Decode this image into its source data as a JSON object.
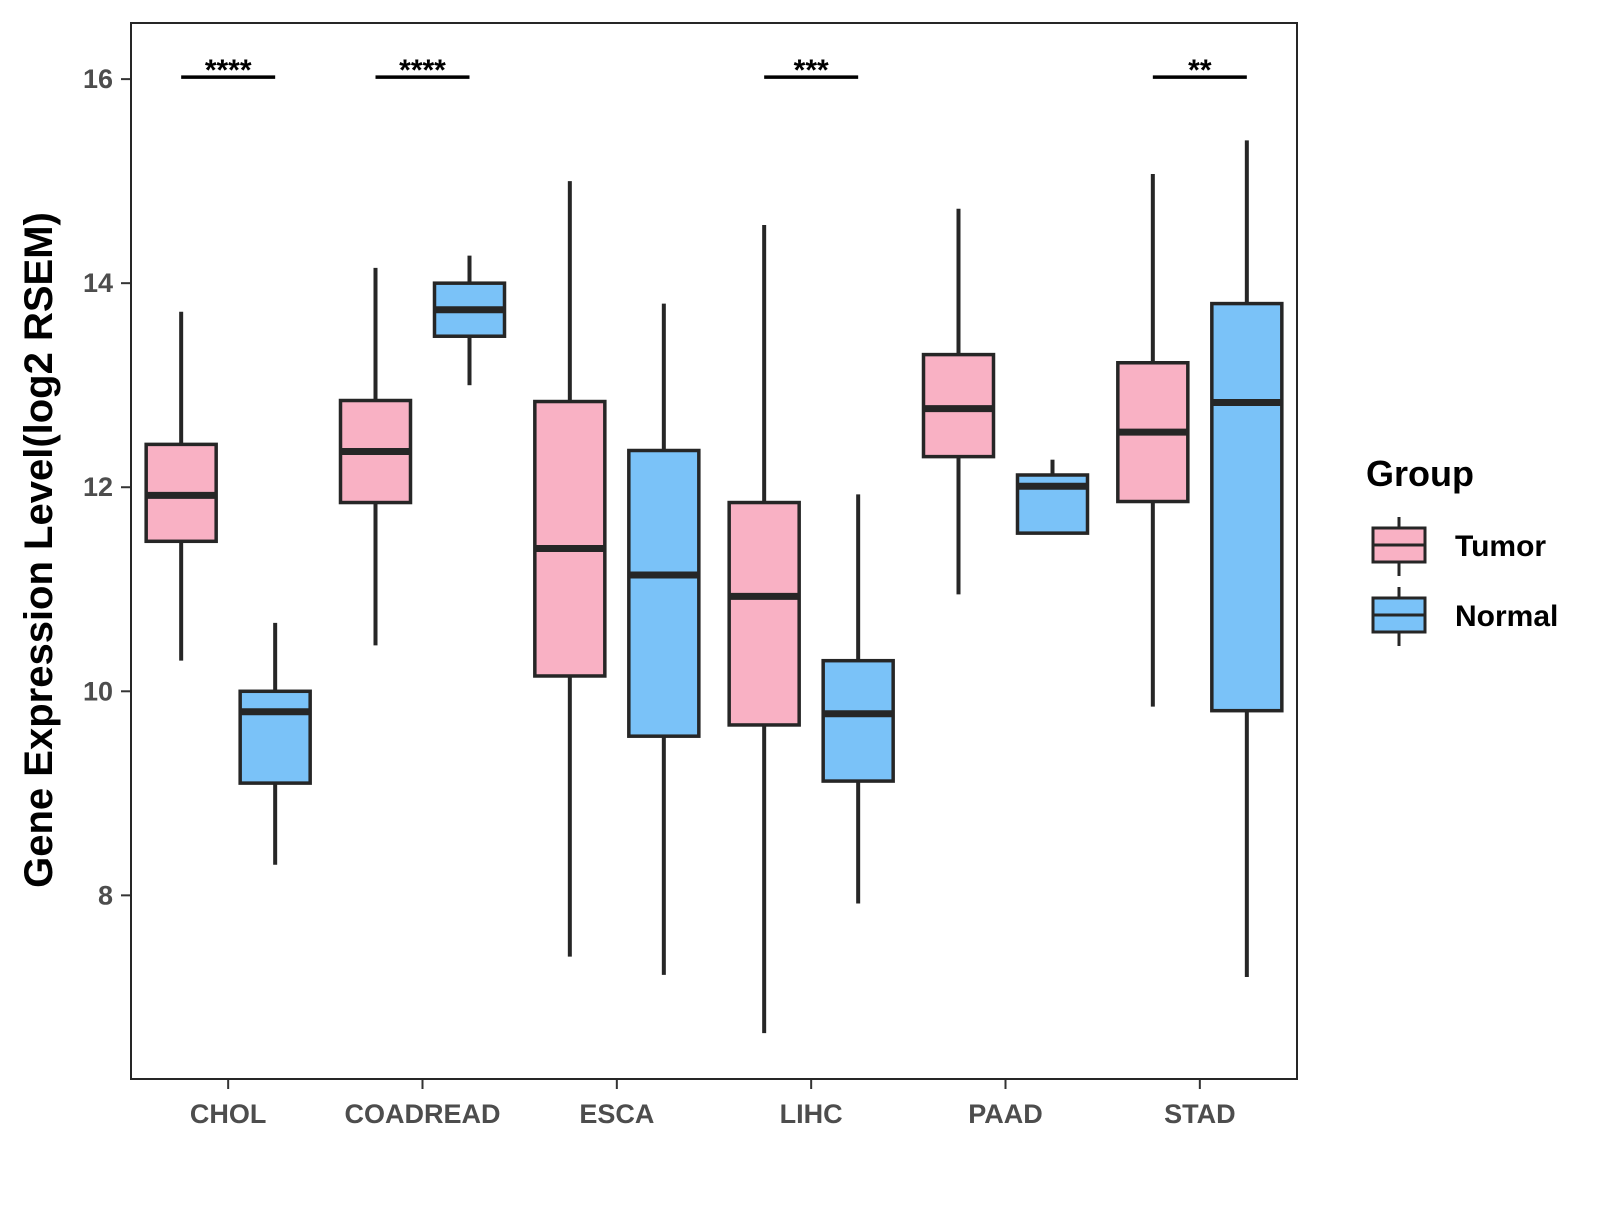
{
  "chart_data": {
    "type": "boxplot",
    "title": "",
    "xlabel": "",
    "ylabel": "Gene Expression Level(log2 RSEM)",
    "ylim": [
      6.2,
      16.55
    ],
    "yticks": [
      8,
      10,
      12,
      14,
      16
    ],
    "categories": [
      "CHOL",
      "COADREAD",
      "ESCA",
      "LIHC",
      "PAAD",
      "STAD"
    ],
    "legend": {
      "title": "Group",
      "position": "right",
      "entries": [
        "Tumor",
        "Normal"
      ]
    },
    "colors": {
      "Tumor": "#F9B1C4",
      "Normal": "#7AC2F8",
      "outline": "#262626"
    },
    "series": [
      {
        "name": "Tumor",
        "boxes": [
          {
            "min": 10.3,
            "q1": 11.47,
            "median": 11.92,
            "q3": 12.42,
            "max": 13.72
          },
          {
            "min": 10.45,
            "q1": 11.85,
            "median": 12.35,
            "q3": 12.85,
            "max": 14.15
          },
          {
            "min": 7.4,
            "q1": 10.15,
            "median": 11.4,
            "q3": 12.84,
            "max": 15.0
          },
          {
            "min": 6.65,
            "q1": 9.67,
            "median": 10.93,
            "q3": 11.85,
            "max": 14.57
          },
          {
            "min": 10.95,
            "q1": 12.3,
            "median": 12.77,
            "q3": 13.3,
            "max": 14.73
          },
          {
            "min": 9.85,
            "q1": 11.86,
            "median": 12.54,
            "q3": 13.22,
            "max": 15.07
          }
        ]
      },
      {
        "name": "Normal",
        "boxes": [
          {
            "min": 8.3,
            "q1": 9.1,
            "median": 9.8,
            "q3": 10.0,
            "max": 10.67
          },
          {
            "min": 13.0,
            "q1": 13.48,
            "median": 13.74,
            "q3": 14.0,
            "max": 14.27
          },
          {
            "min": 7.22,
            "q1": 9.56,
            "median": 11.14,
            "q3": 12.36,
            "max": 13.8
          },
          {
            "min": 7.92,
            "q1": 9.12,
            "median": 9.78,
            "q3": 10.3,
            "max": 11.93
          },
          {
            "min": 11.55,
            "q1": 11.55,
            "median": 12.01,
            "q3": 12.12,
            "max": 12.27
          },
          {
            "min": 7.2,
            "q1": 9.81,
            "median": 12.83,
            "q3": 13.8,
            "max": 15.4
          }
        ]
      }
    ],
    "significance": [
      {
        "category": "CHOL",
        "label": "****",
        "y": 16.02
      },
      {
        "category": "COADREAD",
        "label": "****",
        "y": 16.02
      },
      {
        "category": "LIHC",
        "label": "***",
        "y": 16.02
      },
      {
        "category": "STAD",
        "label": "**",
        "y": 16.02
      }
    ]
  }
}
